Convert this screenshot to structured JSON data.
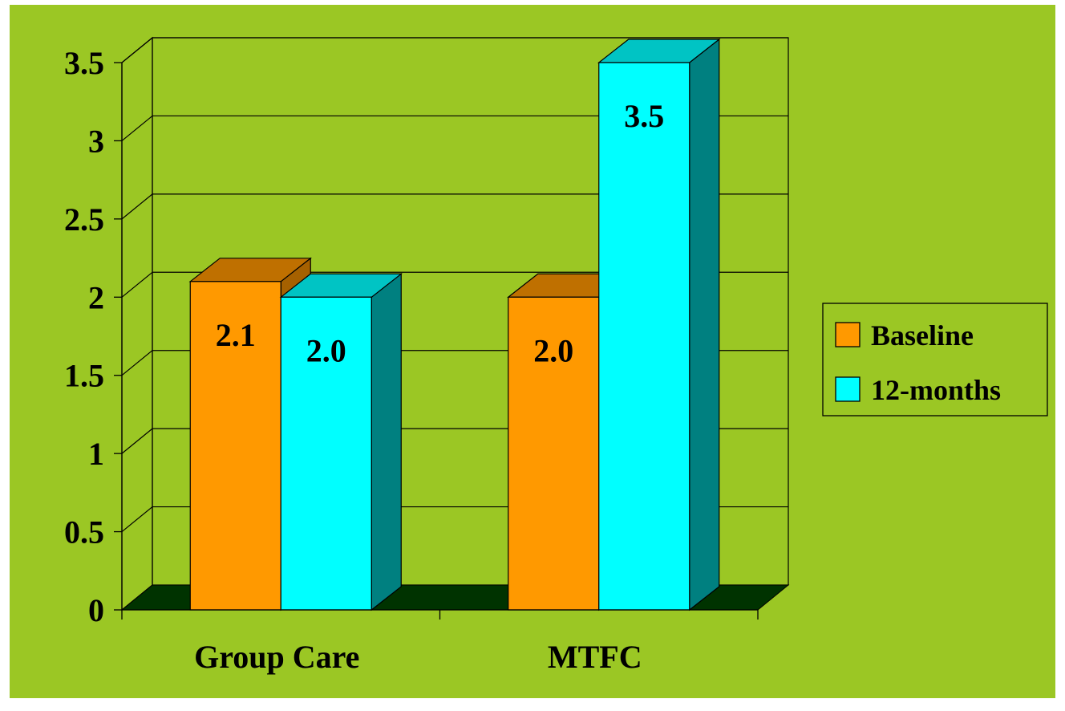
{
  "colors": {
    "background": "#9BC724",
    "floor": "#003300",
    "gridline": "#000000",
    "Baseline": {
      "front": "#FF9900",
      "top": "#BF7000",
      "side": "#A66100"
    },
    "12-months": {
      "front": "#00FFFF",
      "top": "#00C4C4",
      "side": "#008080"
    }
  },
  "chart_data": {
    "type": "bar",
    "title": "",
    "xlabel": "",
    "ylabel": "",
    "categories": [
      "Group Care",
      "MTFC"
    ],
    "series": [
      {
        "name": "Baseline",
        "values": [
          2.1,
          2.0
        ],
        "labels": [
          "2.1",
          "2.0"
        ]
      },
      {
        "name": "12-months",
        "values": [
          2.0,
          3.5
        ],
        "labels": [
          "2.0",
          "3.5"
        ]
      }
    ],
    "ylim": [
      0,
      3.5
    ],
    "yticks": [
      0,
      0.5,
      1,
      1.5,
      2,
      2.5,
      3,
      3.5
    ],
    "ytick_labels": [
      "0",
      "0.5",
      "1",
      "1.5",
      "2",
      "2.5",
      "3",
      "3.5"
    ],
    "style": "3d-clustered-column",
    "grid": true,
    "legend": {
      "position": "right",
      "entries": [
        "Baseline",
        "12-months"
      ]
    }
  }
}
